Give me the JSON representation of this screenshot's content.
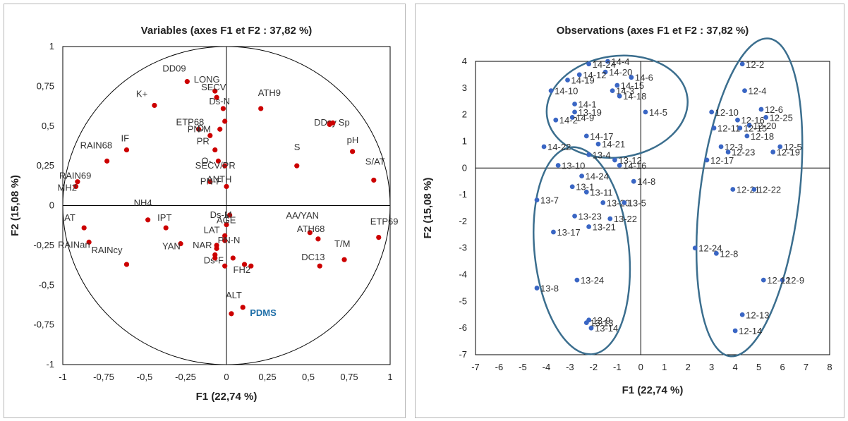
{
  "chart_data": [
    {
      "type": "scatter",
      "title": "Variables (axes F1 et F2 : 37,82 %)",
      "xlabel": "F1 (22,74 %)",
      "ylabel": "F2 (15,08 %)",
      "xlim": [
        -1,
        1
      ],
      "ylim": [
        -1,
        1
      ],
      "x_ticks": [
        "-1",
        "-0,75",
        "-0,5",
        "-0,25",
        "0",
        "0,25",
        "0,5",
        "0,75",
        "1"
      ],
      "y_ticks": [
        "1",
        "0,75",
        "0,5",
        "0,25",
        "0",
        "-0,25",
        "-0,5",
        "-0,75",
        "-1"
      ],
      "correlation_circle": true,
      "marker_color": "#cc0000",
      "highlight_color": "#1f6fa8",
      "points": [
        {
          "label": "DD09",
          "x": -0.24,
          "y": 0.78
        },
        {
          "label": "LONG",
          "x": -0.07,
          "y": 0.72
        },
        {
          "label": "K+",
          "x": -0.44,
          "y": 0.63
        },
        {
          "label": "SECV",
          "x": -0.06,
          "y": 0.68
        },
        {
          "label": "ATH9",
          "x": 0.21,
          "y": 0.61
        },
        {
          "label": "Ds-N",
          "x": -0.02,
          "y": 0.61
        },
        {
          "label": "DDcy",
          "x": 0.63,
          "y": 0.52
        },
        {
          "label": "Sp",
          "x": 0.65,
          "y": 0.52
        },
        {
          "label": "ETP68",
          "x": -0.17,
          "y": 0.48
        },
        {
          "label": "D",
          "x": -0.1,
          "y": 0.44
        },
        {
          "label": "PN-M",
          "x": -0.04,
          "y": 0.48
        },
        {
          "label": "IF",
          "x": -0.61,
          "y": 0.35
        },
        {
          "label": "RAIN68",
          "x": -0.73,
          "y": 0.28
        },
        {
          "label": "pH",
          "x": 0.77,
          "y": 0.34
        },
        {
          "label": "PR",
          "x": -0.07,
          "y": 0.35
        },
        {
          "label": "S",
          "x": 0.43,
          "y": 0.25
        },
        {
          "label": "S/AT",
          "x": 0.9,
          "y": 0.16
        },
        {
          "label": "O-",
          "x": -0.05,
          "y": 0.28
        },
        {
          "label": "SECV/PR",
          "x": -0.01,
          "y": 0.25
        },
        {
          "label": "PN-F",
          "x": -0.1,
          "y": 0.15
        },
        {
          "label": "RAIN69",
          "x": -0.91,
          "y": 0.15
        },
        {
          "label": "MH2",
          "x": -0.92,
          "y": 0.12
        },
        {
          "label": "ANTH",
          "x": 0.0,
          "y": 0.12
        },
        {
          "label": "NH4",
          "x": -0.48,
          "y": -0.09
        },
        {
          "label": "IPT",
          "x": -0.37,
          "y": -0.14
        },
        {
          "label": "Ds-M",
          "x": 0.02,
          "y": -0.06
        },
        {
          "label": "AA/YAN",
          "x": 0.51,
          "y": -0.17
        },
        {
          "label": "AT",
          "x": -0.87,
          "y": -0.14
        },
        {
          "label": "YAN",
          "x": -0.28,
          "y": -0.24
        },
        {
          "label": "AGE",
          "x": 0.0,
          "y": -0.12
        },
        {
          "label": "ATH68",
          "x": 0.56,
          "y": -0.21
        },
        {
          "label": "ETP69",
          "x": 0.93,
          "y": -0.2
        },
        {
          "label": "RAINan",
          "x": -0.84,
          "y": -0.23
        },
        {
          "label": "LAT",
          "x": -0.01,
          "y": -0.19
        },
        {
          "label": "NAR",
          "x": -0.06,
          "y": -0.25
        },
        {
          "label": "PN-N",
          "x": -0.01,
          "y": -0.22
        },
        {
          "label": "T/M",
          "x": 0.72,
          "y": -0.34
        },
        {
          "label": "RAINcy",
          "x": -0.61,
          "y": -0.37
        },
        {
          "label": "Ds-F",
          "x": -0.07,
          "y": -0.31
        },
        {
          "label": "FH2",
          "x": 0.11,
          "y": -0.37
        },
        {
          "label": "DC13",
          "x": 0.57,
          "y": -0.38
        },
        {
          "label": "ALT",
          "x": 0.03,
          "y": -0.68
        },
        {
          "label": "PDMS",
          "x": 0.1,
          "y": -0.64
        }
      ],
      "extra_markers": [
        {
          "x": -0.01,
          "y": 0.53
        },
        {
          "x": -0.06,
          "y": -0.27
        },
        {
          "x": -0.07,
          "y": -0.33
        },
        {
          "x": 0.04,
          "y": -0.33
        },
        {
          "x": -0.01,
          "y": -0.38
        },
        {
          "x": 0.15,
          "y": -0.38
        },
        {
          "x": 0.63,
          "y": 0.51
        }
      ]
    },
    {
      "type": "scatter",
      "title": "Observations (axes F1 et F2 : 37,82 %)",
      "xlabel": "F1 (22,74 %)",
      "ylabel": "F2 (15,08 %)",
      "xlim": [
        -7,
        8
      ],
      "ylim": [
        -7,
        4
      ],
      "x_ticks": [
        "-7",
        "-6",
        "-5",
        "-4",
        "-3",
        "-2",
        "-1",
        "0",
        "1",
        "2",
        "3",
        "4",
        "5",
        "6",
        "7",
        "8"
      ],
      "y_ticks": [
        "4",
        "3",
        "2",
        "1",
        "0",
        "-1",
        "-2",
        "-3",
        "-4",
        "-5",
        "-6",
        "-7"
      ],
      "marker_color": "#3a66c4",
      "ellipse_color": "#3b6e8e",
      "points": [
        {
          "label": "14-4",
          "x": -1.4,
          "y": 4.0
        },
        {
          "label": "14-24",
          "x": -2.2,
          "y": 3.9
        },
        {
          "label": "14-20",
          "x": -1.5,
          "y": 3.6
        },
        {
          "label": "14-12",
          "x": -2.6,
          "y": 3.5
        },
        {
          "label": "14-6",
          "x": -0.4,
          "y": 3.4
        },
        {
          "label": "14-19",
          "x": -3.1,
          "y": 3.3
        },
        {
          "label": "14-15",
          "x": -1.0,
          "y": 3.1
        },
        {
          "label": "14-3",
          "x": -1.2,
          "y": 2.9
        },
        {
          "label": "14-10",
          "x": -3.8,
          "y": 2.9
        },
        {
          "label": "14-18",
          "x": -0.9,
          "y": 2.7
        },
        {
          "label": "14-1",
          "x": -2.8,
          "y": 2.4
        },
        {
          "label": "14-5",
          "x": 0.2,
          "y": 2.1
        },
        {
          "label": "13-19",
          "x": -2.8,
          "y": 2.1
        },
        {
          "label": "14-9",
          "x": -2.9,
          "y": 1.9
        },
        {
          "label": "14-2",
          "x": -3.6,
          "y": 1.8
        },
        {
          "label": "14-17",
          "x": -2.3,
          "y": 1.2
        },
        {
          "label": "14-21",
          "x": -1.8,
          "y": 0.9
        },
        {
          "label": "14-22",
          "x": -4.1,
          "y": 0.8
        },
        {
          "label": "13-4",
          "x": -2.2,
          "y": 0.5
        },
        {
          "label": "13-12",
          "x": -1.1,
          "y": 0.3
        },
        {
          "label": "14-16",
          "x": -0.9,
          "y": 0.1
        },
        {
          "label": "13-10",
          "x": -3.5,
          "y": 0.1
        },
        {
          "label": "14-24",
          "x": -2.5,
          "y": -0.3
        },
        {
          "label": "14-8",
          "x": -0.3,
          "y": -0.5
        },
        {
          "label": "13-1",
          "x": -2.9,
          "y": -0.7
        },
        {
          "label": "13-11",
          "x": -2.3,
          "y": -0.9
        },
        {
          "label": "13-7",
          "x": -4.4,
          "y": -1.2
        },
        {
          "label": "13-20",
          "x": -1.6,
          "y": -1.3
        },
        {
          "label": "13-5",
          "x": -0.7,
          "y": -1.3
        },
        {
          "label": "13-23",
          "x": -2.8,
          "y": -1.8
        },
        {
          "label": "13-22",
          "x": -1.3,
          "y": -1.9
        },
        {
          "label": "13-21",
          "x": -2.2,
          "y": -2.2
        },
        {
          "label": "13-17",
          "x": -3.7,
          "y": -2.4
        },
        {
          "label": "13-24",
          "x": -2.7,
          "y": -4.2
        },
        {
          "label": "13-8",
          "x": -4.4,
          "y": -4.5
        },
        {
          "label": "13-9",
          "x": -2.2,
          "y": -5.7
        },
        {
          "label": "13-13",
          "x": -2.3,
          "y": -5.8
        },
        {
          "label": "13-14",
          "x": -2.1,
          "y": -6.0
        },
        {
          "label": "12-2",
          "x": 4.3,
          "y": 3.9
        },
        {
          "label": "12-4",
          "x": 4.4,
          "y": 2.9
        },
        {
          "label": "12-6",
          "x": 5.1,
          "y": 2.2
        },
        {
          "label": "12-10",
          "x": 3.0,
          "y": 2.1
        },
        {
          "label": "12-16",
          "x": 4.1,
          "y": 1.8
        },
        {
          "label": "12-25",
          "x": 5.3,
          "y": 1.9
        },
        {
          "label": "12-20",
          "x": 4.6,
          "y": 1.6
        },
        {
          "label": "12-11",
          "x": 3.1,
          "y": 1.5
        },
        {
          "label": "12-15",
          "x": 4.2,
          "y": 1.5
        },
        {
          "label": "12-18",
          "x": 4.5,
          "y": 1.2
        },
        {
          "label": "12-5",
          "x": 5.9,
          "y": 0.8
        },
        {
          "label": "12-3",
          "x": 3.4,
          "y": 0.8
        },
        {
          "label": "12-23",
          "x": 3.7,
          "y": 0.6
        },
        {
          "label": "12-19",
          "x": 5.6,
          "y": 0.6
        },
        {
          "label": "12-17",
          "x": 2.8,
          "y": 0.3
        },
        {
          "label": "12-21",
          "x": 3.9,
          "y": -0.8
        },
        {
          "label": "12-22",
          "x": 4.8,
          "y": -0.8
        },
        {
          "label": "12-24",
          "x": 2.3,
          "y": -3.0
        },
        {
          "label": "12-8",
          "x": 3.2,
          "y": -3.2
        },
        {
          "label": "12-9",
          "x": 6.0,
          "y": -4.2
        },
        {
          "label": "12-12",
          "x": 5.2,
          "y": -4.2
        },
        {
          "label": "12-13",
          "x": 4.3,
          "y": -5.5
        },
        {
          "label": "12-14",
          "x": 4.0,
          "y": -6.1
        }
      ],
      "ellipses": [
        {
          "cx": -1.0,
          "cy": 2.3,
          "rx": 3.0,
          "ry": 1.9,
          "rotate": -8
        },
        {
          "cx": -2.5,
          "cy": -3.1,
          "rx": 2.0,
          "ry": 3.9,
          "rotate": -6
        },
        {
          "cx": 4.6,
          "cy": -1.1,
          "rx": 2.1,
          "ry": 6.0,
          "rotate": 7
        }
      ]
    }
  ]
}
